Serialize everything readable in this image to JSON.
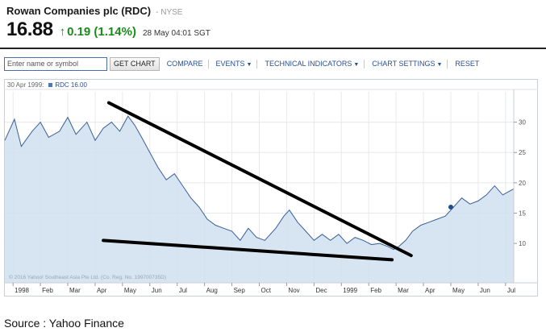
{
  "header": {
    "company": "Rowan Companies plc (RDC)",
    "exchange": "- NYSE",
    "price": "16.88",
    "change": "0.19 (1.14%)",
    "timestamp": "28 May 04:01 SGT"
  },
  "toolbar": {
    "search_placeholder": "Enter name or symbol",
    "get_chart": "GET CHART",
    "compare": "COMPARE",
    "events": "EVENTS",
    "technical_indicators": "TECHNICAL INDICATORS",
    "chart_settings": "CHART SETTINGS",
    "reset": "RESET"
  },
  "chart": {
    "legend_date": "30 Apr 1999:",
    "legend_series": "RDC 16.00",
    "copyright": "© 2016 Yahoo! Southeast Asia Pte Ltd. (Co. Reg. No. 199700735D)",
    "colors": {
      "line": "#3a5f96",
      "fill": "#cfe0ee",
      "trendline": "#000000"
    }
  },
  "chart_data": {
    "type": "area",
    "series_name": "RDC",
    "y_ticks": [
      10,
      15,
      20,
      25,
      30
    ],
    "ylim": [
      3.5,
      35
    ],
    "x_ticks": [
      "1998",
      "Feb",
      "Mar",
      "Apr",
      "May",
      "Jun",
      "Jul",
      "Aug",
      "Sep",
      "Oct",
      "Nov",
      "Dec",
      "1999",
      "Feb",
      "Mar",
      "Apr",
      "May",
      "Jun",
      "Jul"
    ],
    "x_tick_months": [
      0,
      1,
      2,
      3,
      4,
      5,
      6,
      7,
      8,
      9,
      10,
      11,
      12,
      13,
      14,
      15,
      16,
      17,
      18
    ],
    "x_range_months": [
      -0.3,
      18.3
    ],
    "points": [
      [
        -0.3,
        27
      ],
      [
        0.05,
        30.5
      ],
      [
        0.3,
        26
      ],
      [
        0.7,
        28.5
      ],
      [
        1.0,
        30
      ],
      [
        1.3,
        27.5
      ],
      [
        1.7,
        28.5
      ],
      [
        2.0,
        30.8
      ],
      [
        2.3,
        28
      ],
      [
        2.7,
        30
      ],
      [
        3.0,
        27
      ],
      [
        3.3,
        29
      ],
      [
        3.6,
        30
      ],
      [
        3.9,
        28.5
      ],
      [
        4.2,
        31
      ],
      [
        4.45,
        29.5
      ],
      [
        4.7,
        27.5
      ],
      [
        5.0,
        25
      ],
      [
        5.3,
        22.5
      ],
      [
        5.6,
        20.5
      ],
      [
        5.9,
        21.5
      ],
      [
        6.2,
        19.5
      ],
      [
        6.5,
        17.5
      ],
      [
        6.8,
        16
      ],
      [
        7.1,
        14
      ],
      [
        7.4,
        13
      ],
      [
        7.7,
        12.5
      ],
      [
        8.0,
        12
      ],
      [
        8.3,
        10.5
      ],
      [
        8.6,
        12.5
      ],
      [
        8.9,
        11
      ],
      [
        9.2,
        10.5
      ],
      [
        9.6,
        12.5
      ],
      [
        9.9,
        14.5
      ],
      [
        10.1,
        15.5
      ],
      [
        10.4,
        13.5
      ],
      [
        10.7,
        12
      ],
      [
        11.0,
        10.5
      ],
      [
        11.3,
        11.5
      ],
      [
        11.6,
        10.5
      ],
      [
        11.9,
        11.5
      ],
      [
        12.2,
        10
      ],
      [
        12.5,
        11
      ],
      [
        12.8,
        10.5
      ],
      [
        13.1,
        9.8
      ],
      [
        13.4,
        10
      ],
      [
        13.7,
        9.5
      ],
      [
        13.9,
        9.0
      ],
      [
        14.1,
        9.5
      ],
      [
        14.35,
        10.5
      ],
      [
        14.6,
        12
      ],
      [
        14.9,
        13
      ],
      [
        15.2,
        13.5
      ],
      [
        15.5,
        14
      ],
      [
        15.8,
        14.5
      ],
      [
        16.1,
        16
      ],
      [
        16.4,
        17.5
      ],
      [
        16.7,
        16.5
      ],
      [
        17.0,
        17
      ],
      [
        17.3,
        18
      ],
      [
        17.6,
        19.5
      ],
      [
        17.9,
        18
      ],
      [
        18.1,
        18.5
      ],
      [
        18.3,
        19
      ]
    ],
    "marker": [
      16.0,
      16.0
    ],
    "trendlines": [
      {
        "from": [
          3.5,
          33.2
        ],
        "to": [
          14.55,
          8.0
        ]
      },
      {
        "from": [
          3.3,
          10.5
        ],
        "to": [
          13.85,
          7.3
        ]
      }
    ],
    "grid": true,
    "y_axis_side": "right"
  },
  "footer": {
    "source": "Source : Yahoo Finance"
  }
}
